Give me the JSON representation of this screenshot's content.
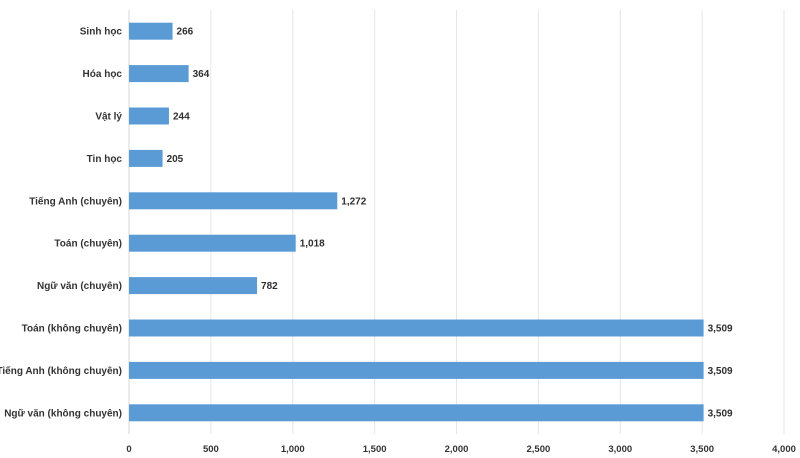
{
  "chart_data": {
    "type": "bar",
    "orientation": "horizontal",
    "title": "",
    "xlabel": "",
    "ylabel": "",
    "xlim": [
      0,
      4000
    ],
    "x_ticks": [
      0,
      500,
      1000,
      1500,
      2000,
      2500,
      3000,
      3500,
      4000
    ],
    "x_tick_labels": [
      "0",
      "500",
      "1,000",
      "1,500",
      "2,000",
      "2,500",
      "3,000",
      "3,500",
      "4,000"
    ],
    "categories": [
      "Sinh học",
      "Hóa học",
      "Vật lý",
      "Tin học",
      "Tiếng Anh (chuyên)",
      "Toán (chuyên)",
      "Ngữ văn (chuyên)",
      "Toán (không chuyên)",
      "Tiếng Anh (không chuyên)",
      "Ngữ văn (không chuyên)"
    ],
    "values": [
      266,
      364,
      244,
      205,
      1272,
      1018,
      782,
      3509,
      3509,
      3509
    ],
    "value_labels": [
      "266",
      "364",
      "244",
      "205",
      "1,272",
      "1,018",
      "782",
      "3,509",
      "3,509",
      "3,509"
    ],
    "bar_color": "#5b9bd5",
    "grid": true,
    "legend": "none"
  }
}
